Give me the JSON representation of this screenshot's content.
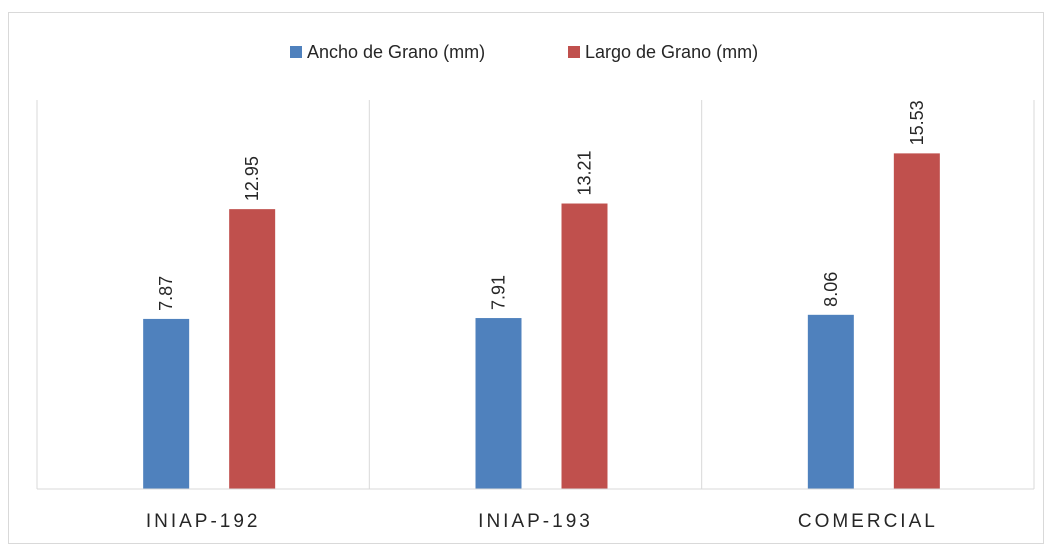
{
  "chart_data": {
    "type": "bar",
    "categories": [
      "INIAP-192",
      "INIAP-193",
      "COMERCIAL"
    ],
    "series": [
      {
        "name": "Ancho de Grano (mm)",
        "values": [
          7.87,
          7.91,
          8.06
        ],
        "color": "#4f81bd"
      },
      {
        "name": "Largo de Grano (mm)",
        "values": [
          12.95,
          13.21,
          15.53
        ],
        "color": "#c0504d"
      }
    ],
    "title": "",
    "xlabel": "",
    "ylabel": "",
    "ylim": [
      0,
      18
    ],
    "grid": false,
    "category_separators": true,
    "legend_position": "top-center",
    "data_labels": true,
    "data_label_orientation": "vertical"
  }
}
